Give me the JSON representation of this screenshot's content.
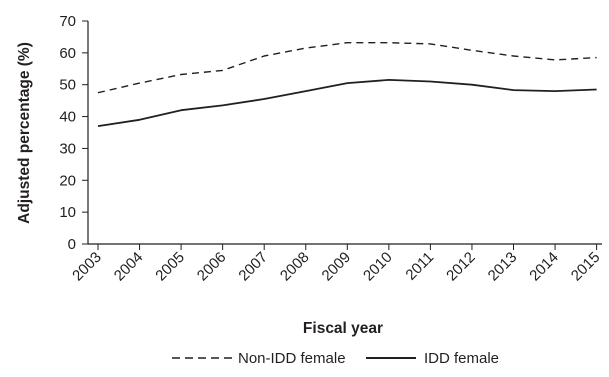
{
  "chart_data": {
    "type": "line",
    "title": "",
    "xlabel": "Fiscal year",
    "ylabel": "Adjusted percentage (%)",
    "ylim": [
      0,
      70
    ],
    "yticks": [
      0,
      10,
      20,
      30,
      40,
      50,
      60,
      70
    ],
    "categories": [
      "2003",
      "2004",
      "2005",
      "2006",
      "2007",
      "2008",
      "2009",
      "2010",
      "2011",
      "2012",
      "2013",
      "2014",
      "2015"
    ],
    "grid": false,
    "legend_position": "bottom",
    "series": [
      {
        "name": "Non-IDD female",
        "style": "dashed",
        "color": "#231f20",
        "values": [
          47.5,
          50.5,
          53.2,
          54.5,
          59.0,
          61.5,
          63.2,
          63.2,
          62.8,
          60.8,
          59.0,
          57.8,
          58.5
        ]
      },
      {
        "name": "IDD female",
        "style": "solid",
        "color": "#231f20",
        "values": [
          37.0,
          39.0,
          42.0,
          43.5,
          45.5,
          48.0,
          50.5,
          51.5,
          51.0,
          50.0,
          48.3,
          48.0,
          48.5
        ]
      }
    ]
  }
}
